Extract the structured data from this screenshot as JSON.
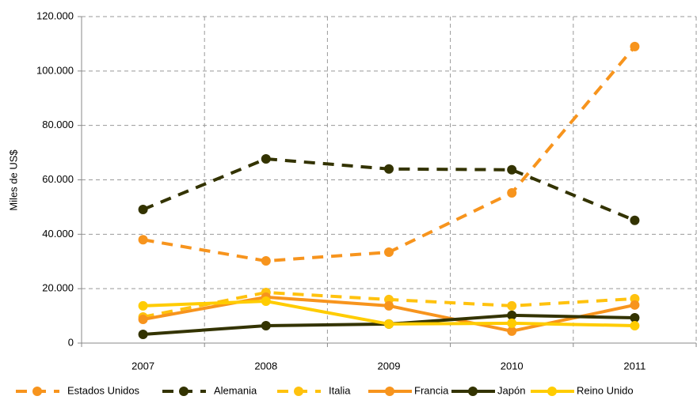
{
  "chart_data": {
    "type": "line",
    "y_label": "Miles de US$",
    "categories": [
      "2007",
      "2008",
      "2009",
      "2010",
      "2011"
    ],
    "series": [
      {
        "name": "Estados Unidos",
        "color": "#f7941d",
        "dashed": true,
        "values": [
          38000,
          30200,
          33400,
          55200,
          109000
        ]
      },
      {
        "name": "Alemania",
        "color": "#333300",
        "dashed": true,
        "values": [
          49100,
          67700,
          64000,
          63700,
          45100
        ]
      },
      {
        "name": "Italia",
        "color": "#ffc20e",
        "dashed": true,
        "values": [
          9600,
          18600,
          16000,
          13700,
          16300
        ]
      },
      {
        "name": "Francia",
        "color": "#f7941d",
        "dashed": false,
        "values": [
          8700,
          16900,
          13700,
          4400,
          14000
        ]
      },
      {
        "name": "Japón",
        "color": "#333300",
        "dashed": false,
        "values": [
          3200,
          6400,
          7000,
          10200,
          9300
        ]
      },
      {
        "name": "Reino Unido",
        "color": "#ffcc00",
        "dashed": false,
        "values": [
          13700,
          15400,
          7000,
          7300,
          6400
        ]
      }
    ],
    "ylim": [
      0,
      120000
    ],
    "yticks": [
      0,
      {
        "value": 20000,
        "label": "20.000"
      },
      {
        "value": 40000,
        "label": "40.000"
      },
      {
        "value": 60000,
        "label": "60.000"
      },
      {
        "value": 80000,
        "label": "80.000"
      },
      {
        "value": 100000,
        "label": "100.000"
      },
      {
        "value": 120000,
        "label": "120.000"
      }
    ],
    "grid": true,
    "legend": "bottom"
  }
}
